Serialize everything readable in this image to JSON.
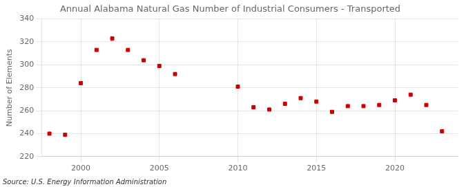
{
  "chart_data": {
    "type": "scatter",
    "title": "Annual Alabama Natural Gas Number of Industrial Consumers - Transported",
    "ylabel": "Number of Elements",
    "source": "Source: U.S. Energy Information Administration",
    "x": [
      1998,
      1999,
      2000,
      2001,
      2002,
      2003,
      2004,
      2005,
      2006,
      2010,
      2011,
      2012,
      2013,
      2014,
      2015,
      2016,
      2017,
      2018,
      2019,
      2020,
      2021,
      2022,
      2023
    ],
    "values": [
      240,
      239,
      284,
      313,
      323,
      313,
      304,
      299,
      292,
      281,
      263,
      261,
      266,
      271,
      268,
      259,
      264,
      264,
      265,
      269,
      274,
      265,
      242
    ],
    "color": "#cc0000",
    "marker": "square",
    "xlim": [
      1997.5,
      2024
    ],
    "xticks": [
      2000,
      2005,
      2010,
      2015,
      2020
    ],
    "ylim": [
      220,
      340
    ],
    "yticks": [
      220,
      240,
      260,
      280,
      300,
      320,
      340
    ],
    "grid": true
  }
}
